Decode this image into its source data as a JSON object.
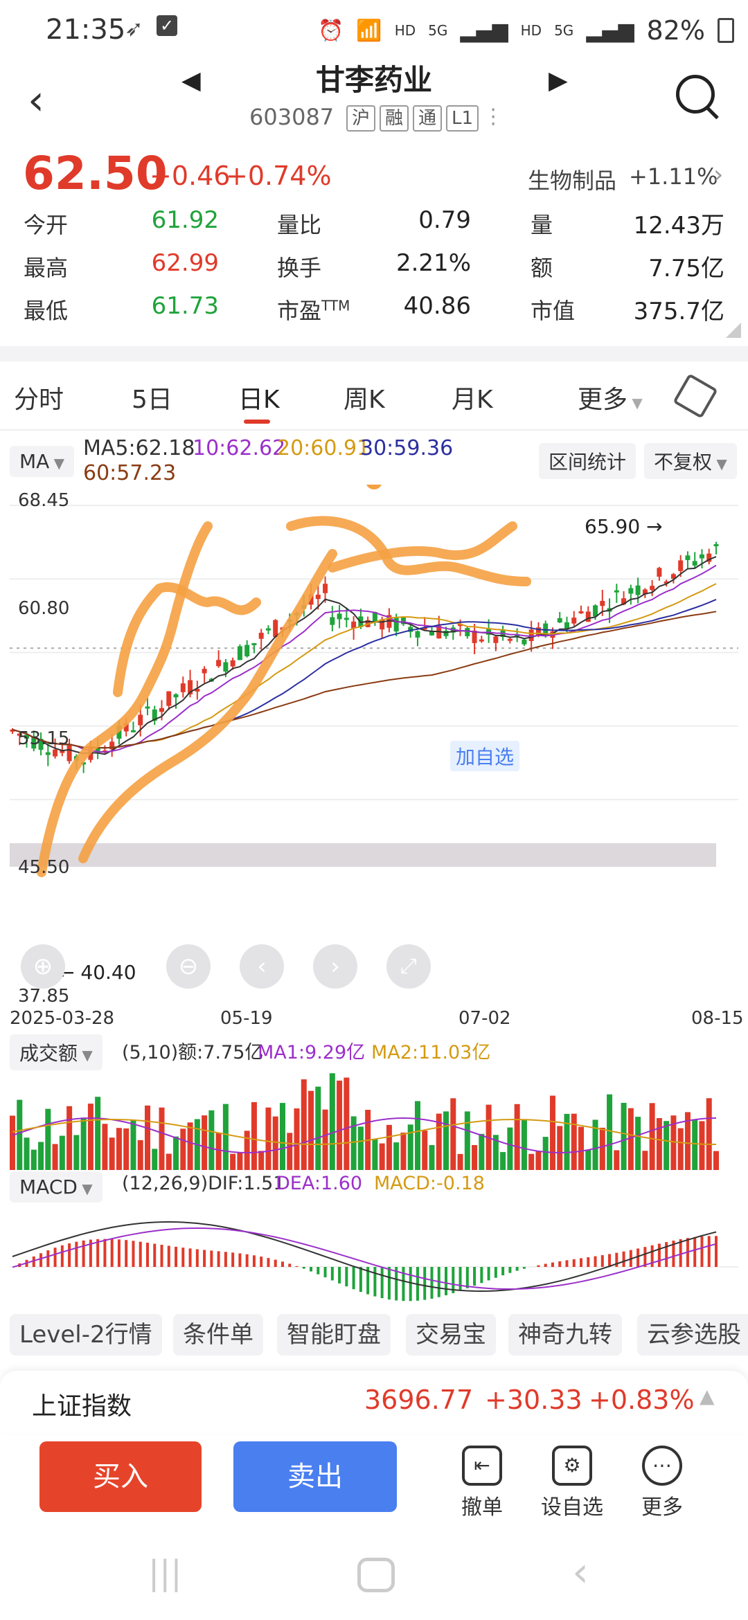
{
  "status_bar": {
    "time": "21:35",
    "battery": "82%",
    "net1": "HD",
    "net2": "HD",
    "gen1": "5G",
    "gen2": "5G"
  },
  "header": {
    "title": "甘李药业",
    "code": "603087",
    "tags": [
      "沪",
      "融",
      "通",
      "L1"
    ]
  },
  "quote": {
    "price": "62.50",
    "change": "+0.46",
    "change_pct": "+0.74%",
    "sector": "生物制品",
    "sector_change": "+1.11%",
    "stats": [
      {
        "label": "今开",
        "value": "61.92",
        "color": "green"
      },
      {
        "label": "量比",
        "value": "0.79",
        "color": "dark"
      },
      {
        "label": "量",
        "value": "12.43万",
        "color": "dark"
      },
      {
        "label": "最高",
        "value": "62.99",
        "color": "red"
      },
      {
        "label": "换手",
        "value": "2.21%",
        "color": "dark"
      },
      {
        "label": "额",
        "value": "7.75亿",
        "color": "dark"
      },
      {
        "label": "最低",
        "value": "61.73",
        "color": "green"
      },
      {
        "label": "市盈",
        "label_sup": "TTM",
        "value": "40.86",
        "color": "dark"
      },
      {
        "label": "市值",
        "value": "375.7亿",
        "color": "dark"
      }
    ]
  },
  "tabs": [
    "分时",
    "5日",
    "日K",
    "周K",
    "月K",
    "更多"
  ],
  "active_tab": "日K",
  "ma": {
    "selector": "MA",
    "ma5": "MA5:62.18",
    "ma10": "10:62.62",
    "ma20": "20:60.91",
    "ma30": "30:59.36",
    "ma60": "60:57.23",
    "range_btn": "区间统计",
    "adjust_btn": "不复权"
  },
  "kchart": {
    "y_labels": [
      "68.45",
      "60.80",
      "53.15",
      "45.50",
      "37.85"
    ],
    "x_labels": [
      "2025-03-28",
      "05-19",
      "07-02",
      "08-15"
    ],
    "high_note": "65.90",
    "low_note": "40.40",
    "add_watch": "加自选"
  },
  "volume": {
    "selector": "成交额",
    "params": "(5,10)额:7.75亿",
    "ma1": "MA1:9.29亿",
    "ma2": "MA2:11.03亿"
  },
  "macd": {
    "selector": "MACD",
    "params": "(12,26,9)DIF:1.51",
    "dea": "DEA:1.60",
    "macd": "MACD:-0.18"
  },
  "features": [
    "Level-2行情",
    "条件单",
    "智能盯盘",
    "交易宝",
    "神奇九转",
    "云参选股"
  ],
  "index_bar": {
    "name": "上证指数",
    "value": "3696.77",
    "change": "+30.33",
    "pct": "+0.83%"
  },
  "actions": {
    "buy": "买入",
    "sell": "卖出",
    "cancel": "撤单",
    "watch": "设自选",
    "more": "更多"
  },
  "colors": {
    "up": "#e03a2a",
    "down": "#1fa33b",
    "ma5": "#333333",
    "ma10": "#9b2fc9",
    "ma20": "#d49a12",
    "ma30": "#2b2fa0",
    "ma60": "#8a3b12",
    "buy": "#e6442a",
    "sell": "#4a7ff0",
    "annotation": "#f5a142"
  }
}
